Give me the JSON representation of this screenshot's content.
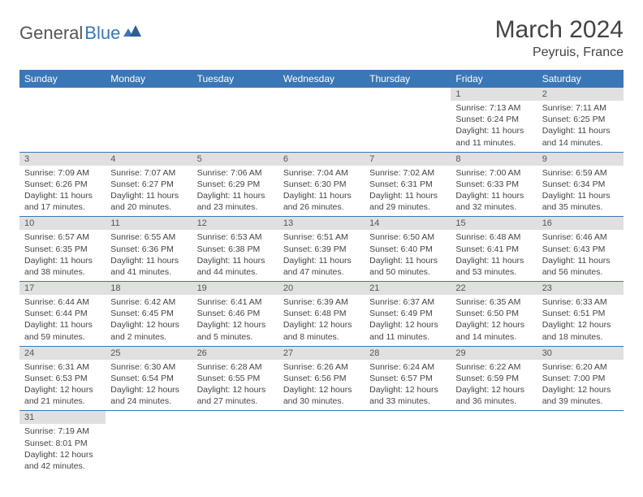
{
  "logo": {
    "text1": "General",
    "text2": "Blue"
  },
  "header": {
    "title": "March 2024",
    "location": "Peyruis, France"
  },
  "colors": {
    "header_bg": "#3a77b6",
    "header_fg": "#ffffff",
    "daynum_bg": "#e0e0e0",
    "row_border": "#3a77b6",
    "text": "#444444",
    "logo_gray": "#555555",
    "logo_blue": "#3a77b6",
    "background": "#ffffff"
  },
  "dayNames": [
    "Sunday",
    "Monday",
    "Tuesday",
    "Wednesday",
    "Thursday",
    "Friday",
    "Saturday"
  ],
  "weeks": [
    [
      {
        "n": "",
        "sr": "",
        "ss": "",
        "dl": ""
      },
      {
        "n": "",
        "sr": "",
        "ss": "",
        "dl": ""
      },
      {
        "n": "",
        "sr": "",
        "ss": "",
        "dl": ""
      },
      {
        "n": "",
        "sr": "",
        "ss": "",
        "dl": ""
      },
      {
        "n": "",
        "sr": "",
        "ss": "",
        "dl": ""
      },
      {
        "n": "1",
        "sr": "Sunrise: 7:13 AM",
        "ss": "Sunset: 6:24 PM",
        "dl": "Daylight: 11 hours and 11 minutes."
      },
      {
        "n": "2",
        "sr": "Sunrise: 7:11 AM",
        "ss": "Sunset: 6:25 PM",
        "dl": "Daylight: 11 hours and 14 minutes."
      }
    ],
    [
      {
        "n": "3",
        "sr": "Sunrise: 7:09 AM",
        "ss": "Sunset: 6:26 PM",
        "dl": "Daylight: 11 hours and 17 minutes."
      },
      {
        "n": "4",
        "sr": "Sunrise: 7:07 AM",
        "ss": "Sunset: 6:27 PM",
        "dl": "Daylight: 11 hours and 20 minutes."
      },
      {
        "n": "5",
        "sr": "Sunrise: 7:06 AM",
        "ss": "Sunset: 6:29 PM",
        "dl": "Daylight: 11 hours and 23 minutes."
      },
      {
        "n": "6",
        "sr": "Sunrise: 7:04 AM",
        "ss": "Sunset: 6:30 PM",
        "dl": "Daylight: 11 hours and 26 minutes."
      },
      {
        "n": "7",
        "sr": "Sunrise: 7:02 AM",
        "ss": "Sunset: 6:31 PM",
        "dl": "Daylight: 11 hours and 29 minutes."
      },
      {
        "n": "8",
        "sr": "Sunrise: 7:00 AM",
        "ss": "Sunset: 6:33 PM",
        "dl": "Daylight: 11 hours and 32 minutes."
      },
      {
        "n": "9",
        "sr": "Sunrise: 6:59 AM",
        "ss": "Sunset: 6:34 PM",
        "dl": "Daylight: 11 hours and 35 minutes."
      }
    ],
    [
      {
        "n": "10",
        "sr": "Sunrise: 6:57 AM",
        "ss": "Sunset: 6:35 PM",
        "dl": "Daylight: 11 hours and 38 minutes."
      },
      {
        "n": "11",
        "sr": "Sunrise: 6:55 AM",
        "ss": "Sunset: 6:36 PM",
        "dl": "Daylight: 11 hours and 41 minutes."
      },
      {
        "n": "12",
        "sr": "Sunrise: 6:53 AM",
        "ss": "Sunset: 6:38 PM",
        "dl": "Daylight: 11 hours and 44 minutes."
      },
      {
        "n": "13",
        "sr": "Sunrise: 6:51 AM",
        "ss": "Sunset: 6:39 PM",
        "dl": "Daylight: 11 hours and 47 minutes."
      },
      {
        "n": "14",
        "sr": "Sunrise: 6:50 AM",
        "ss": "Sunset: 6:40 PM",
        "dl": "Daylight: 11 hours and 50 minutes."
      },
      {
        "n": "15",
        "sr": "Sunrise: 6:48 AM",
        "ss": "Sunset: 6:41 PM",
        "dl": "Daylight: 11 hours and 53 minutes."
      },
      {
        "n": "16",
        "sr": "Sunrise: 6:46 AM",
        "ss": "Sunset: 6:43 PM",
        "dl": "Daylight: 11 hours and 56 minutes."
      }
    ],
    [
      {
        "n": "17",
        "sr": "Sunrise: 6:44 AM",
        "ss": "Sunset: 6:44 PM",
        "dl": "Daylight: 11 hours and 59 minutes."
      },
      {
        "n": "18",
        "sr": "Sunrise: 6:42 AM",
        "ss": "Sunset: 6:45 PM",
        "dl": "Daylight: 12 hours and 2 minutes."
      },
      {
        "n": "19",
        "sr": "Sunrise: 6:41 AM",
        "ss": "Sunset: 6:46 PM",
        "dl": "Daylight: 12 hours and 5 minutes."
      },
      {
        "n": "20",
        "sr": "Sunrise: 6:39 AM",
        "ss": "Sunset: 6:48 PM",
        "dl": "Daylight: 12 hours and 8 minutes."
      },
      {
        "n": "21",
        "sr": "Sunrise: 6:37 AM",
        "ss": "Sunset: 6:49 PM",
        "dl": "Daylight: 12 hours and 11 minutes."
      },
      {
        "n": "22",
        "sr": "Sunrise: 6:35 AM",
        "ss": "Sunset: 6:50 PM",
        "dl": "Daylight: 12 hours and 14 minutes."
      },
      {
        "n": "23",
        "sr": "Sunrise: 6:33 AM",
        "ss": "Sunset: 6:51 PM",
        "dl": "Daylight: 12 hours and 18 minutes."
      }
    ],
    [
      {
        "n": "24",
        "sr": "Sunrise: 6:31 AM",
        "ss": "Sunset: 6:53 PM",
        "dl": "Daylight: 12 hours and 21 minutes."
      },
      {
        "n": "25",
        "sr": "Sunrise: 6:30 AM",
        "ss": "Sunset: 6:54 PM",
        "dl": "Daylight: 12 hours and 24 minutes."
      },
      {
        "n": "26",
        "sr": "Sunrise: 6:28 AM",
        "ss": "Sunset: 6:55 PM",
        "dl": "Daylight: 12 hours and 27 minutes."
      },
      {
        "n": "27",
        "sr": "Sunrise: 6:26 AM",
        "ss": "Sunset: 6:56 PM",
        "dl": "Daylight: 12 hours and 30 minutes."
      },
      {
        "n": "28",
        "sr": "Sunrise: 6:24 AM",
        "ss": "Sunset: 6:57 PM",
        "dl": "Daylight: 12 hours and 33 minutes."
      },
      {
        "n": "29",
        "sr": "Sunrise: 6:22 AM",
        "ss": "Sunset: 6:59 PM",
        "dl": "Daylight: 12 hours and 36 minutes."
      },
      {
        "n": "30",
        "sr": "Sunrise: 6:20 AM",
        "ss": "Sunset: 7:00 PM",
        "dl": "Daylight: 12 hours and 39 minutes."
      }
    ],
    [
      {
        "n": "31",
        "sr": "Sunrise: 7:19 AM",
        "ss": "Sunset: 8:01 PM",
        "dl": "Daylight: 12 hours and 42 minutes."
      },
      {
        "n": "",
        "sr": "",
        "ss": "",
        "dl": ""
      },
      {
        "n": "",
        "sr": "",
        "ss": "",
        "dl": ""
      },
      {
        "n": "",
        "sr": "",
        "ss": "",
        "dl": ""
      },
      {
        "n": "",
        "sr": "",
        "ss": "",
        "dl": ""
      },
      {
        "n": "",
        "sr": "",
        "ss": "",
        "dl": ""
      },
      {
        "n": "",
        "sr": "",
        "ss": "",
        "dl": ""
      }
    ]
  ]
}
